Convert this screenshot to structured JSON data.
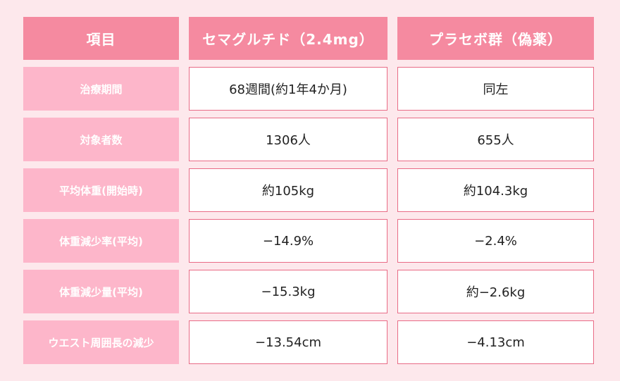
{
  "header": {
    "item": "項目",
    "semaglutide": "セマグルチド（2.4mg）",
    "placebo": "プラセボ群（偽薬）"
  },
  "rows": [
    {
      "label": "治療期間",
      "semaglutide": "68週間(約1年4か月)",
      "placebo": "同左"
    },
    {
      "label": "対象者数",
      "semaglutide": "1306人",
      "placebo": "655人"
    },
    {
      "label": "平均体重(開始時)",
      "semaglutide": "約105kg",
      "placebo": "約104.3kg"
    },
    {
      "label": "体重減少率(平均)",
      "semaglutide": "−14.9%",
      "placebo": "−2.4%"
    },
    {
      "label": "体重減少量(平均)",
      "semaglutide": "−15.3kg",
      "placebo": "約−2.6kg"
    },
    {
      "label": "ウエスト周囲長の減少",
      "semaglutide": "−13.54cm",
      "placebo": "−4.13cm"
    }
  ],
  "colors": {
    "background": "#fde8ec",
    "header": "#f58aa0",
    "row_label": "#fdb6ca",
    "cell_border": "#e96b86"
  }
}
